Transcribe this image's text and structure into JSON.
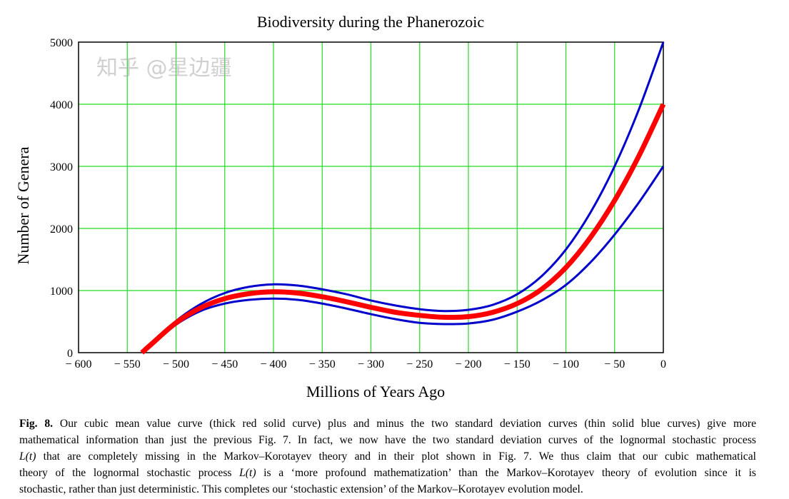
{
  "chart_data": {
    "type": "line",
    "title": "Biodiversity during the Phanerozoic",
    "xlabel": "Millions of Years Ago",
    "ylabel": "Number of Genera",
    "xlim": [
      -600,
      0
    ],
    "ylim": [
      0,
      5000
    ],
    "xticks": [
      -600,
      -550,
      -500,
      -450,
      -400,
      -350,
      -300,
      -250,
      -200,
      -150,
      -100,
      -50,
      0
    ],
    "xtick_labels": [
      "− 600",
      "− 550",
      "− 500",
      "− 450",
      "− 400",
      "− 350",
      "− 300",
      "− 250",
      "− 200",
      "− 150",
      "− 100",
      "− 50",
      "0"
    ],
    "yticks": [
      0,
      1000,
      2000,
      3000,
      4000,
      5000
    ],
    "ytick_labels": [
      "0",
      "1000",
      "2000",
      "3000",
      "4000",
      "5000"
    ],
    "grid": true,
    "x": [
      -535,
      -525,
      -500,
      -475,
      -450,
      -425,
      -400,
      -375,
      -350,
      -325,
      -300,
      -275,
      -250,
      -225,
      -200,
      -175,
      -150,
      -125,
      -100,
      -75,
      -50,
      -25,
      0
    ],
    "series": [
      {
        "name": "upper standard deviation curve",
        "color": "#0000cc",
        "values": [
          0,
          150,
          510,
          780,
          960,
          1060,
          1100,
          1080,
          1020,
          940,
          840,
          760,
          700,
          670,
          690,
          770,
          940,
          1230,
          1660,
          2250,
          3000,
          3920,
          5000
        ]
      },
      {
        "name": "lower standard deviation curve",
        "color": "#0000cc",
        "values": [
          0,
          130,
          450,
          670,
          790,
          850,
          870,
          850,
          790,
          710,
          620,
          540,
          480,
          460,
          470,
          530,
          660,
          840,
          1090,
          1450,
          1900,
          2420,
          3000
        ]
      },
      {
        "name": "cubic mean value curve",
        "color": "#ff0000",
        "values": [
          0,
          140,
          480,
          720,
          870,
          950,
          980,
          960,
          900,
          820,
          730,
          650,
          600,
          570,
          580,
          650,
          790,
          1020,
          1370,
          1850,
          2450,
          3170,
          4000
        ]
      }
    ],
    "grid_color": "#22dd22"
  },
  "caption": {
    "fig_label": "Fig. 8.",
    "line1": " Our cubic mean value curve (thick red solid curve) plus and minus the two standard deviation curves (thin solid blue curves) give more",
    "line2": "mathematical information than just the previous Fig. 7. In fact, we now have the two standard deviation curves of the lognormal stochastic process",
    "line3_var": "L(t)",
    "line3": " that are completely missing in the Markov–Korotayev theory and in their plot shown in Fig. 7. We thus claim that our cubic mathematical",
    "line4_a": "theory of the lognormal stochastic process ",
    "line4_var": "L(t)",
    "line4_b": " is a ‘more profound mathematization’ than the Markov–Korotayev theory of evolution since it is",
    "line5": "stochastic, rather than just deterministic. This completes our ‘stochastic extension’ of the Markov–Korotayev evolution model."
  },
  "watermark": "知乎 @星边疆"
}
